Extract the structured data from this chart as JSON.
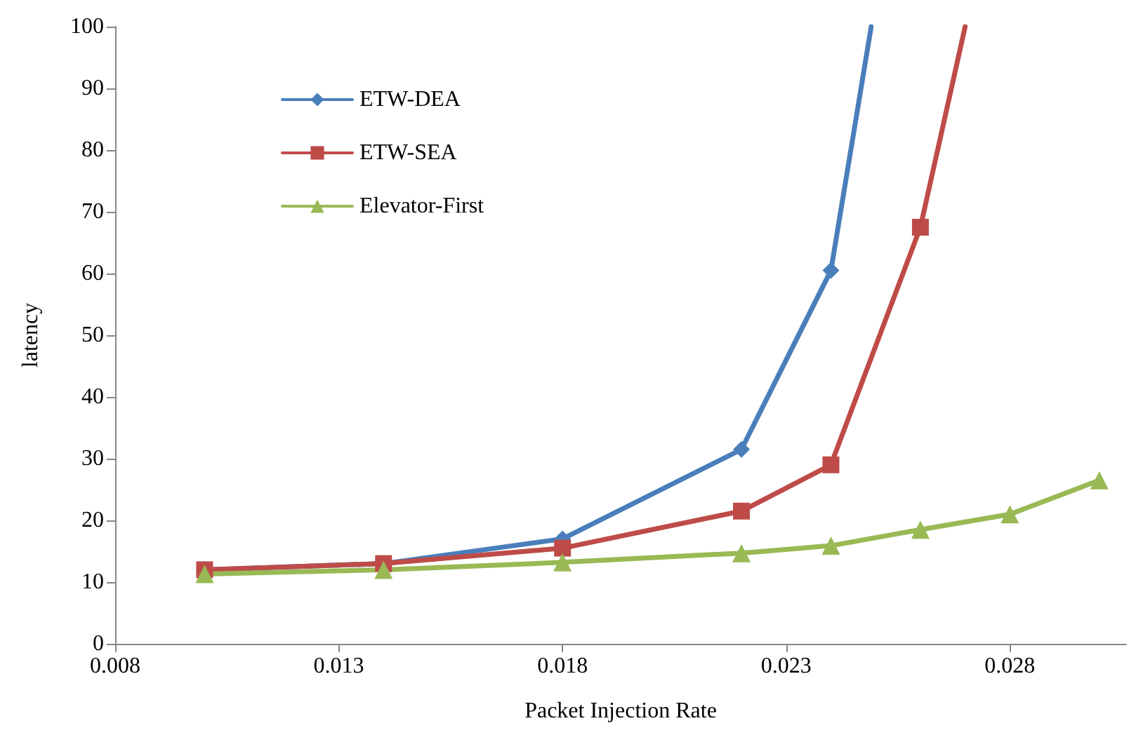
{
  "chart_data": {
    "type": "line",
    "xlabel": "Packet Injection Rate",
    "ylabel": "latency",
    "xlim": [
      0.008,
      0.0306
    ],
    "xticks": [
      0.008,
      0.013,
      0.018,
      0.023,
      0.028
    ],
    "ylim": [
      0,
      100
    ],
    "yticks": [
      0,
      10,
      20,
      30,
      40,
      50,
      60,
      70,
      80,
      90,
      100
    ],
    "grid": false,
    "legend": "top left",
    "line_style": "solid",
    "series": [
      {
        "name": "ETW-DEA",
        "color": "#4a7ebb",
        "marker": "diamond",
        "x": [
          0.01,
          0.014,
          0.018,
          0.022,
          0.024,
          0.0249
        ],
        "values": [
          12,
          13,
          17,
          31.5,
          60.5,
          100
        ]
      },
      {
        "name": "ETW-SEA",
        "color": "#be4b48",
        "marker": "square",
        "x": [
          0.01,
          0.014,
          0.018,
          0.022,
          0.024,
          0.026,
          0.027
        ],
        "values": [
          12,
          13,
          15.5,
          21.5,
          29,
          67.5,
          100
        ]
      },
      {
        "name": "Elevator-First",
        "color": "#98b954",
        "marker": "triangle",
        "x": [
          0.01,
          0.014,
          0.018,
          0.022,
          0.024,
          0.026,
          0.028,
          0.03
        ],
        "values": [
          11.3,
          12,
          13.2,
          14.7,
          15.9,
          18.5,
          21,
          26.5
        ]
      }
    ]
  }
}
